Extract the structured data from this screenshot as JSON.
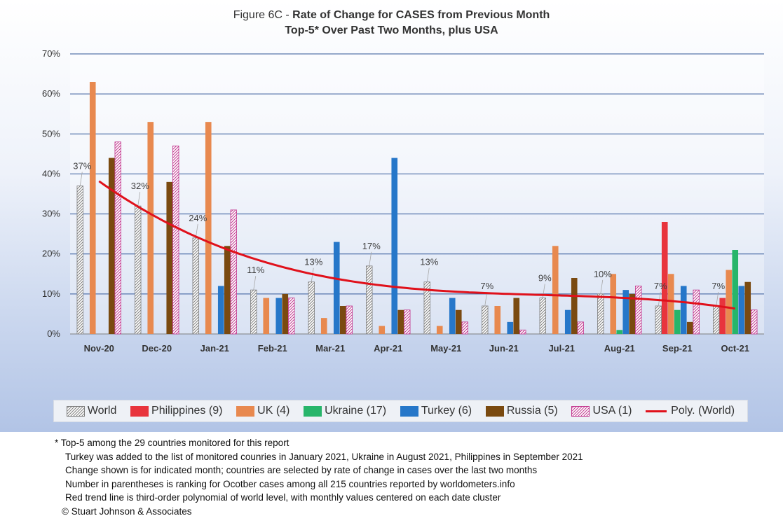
{
  "title": {
    "prefix": "Figure 6C - ",
    "main": "Rate of Change for CASES from Previous Month",
    "subtitle": "Top-5* Over Past Two Months, plus USA"
  },
  "notes": {
    "footnote": "* Top-5 among the 29 countries monitored for this report",
    "lines": [
      "Turkey was added to the list of monitored counries in January 2021, Ukraine in August 2021, Philippines in September 2021",
      "Change shown is for indicated month; countries are selected by rate of change in cases over the last two months",
      "Number in parentheses is ranking for Ocotber cases among all 215 countries reported by worldometers.info",
      "Red trend line is third-order polynomial of world level, with monthly values centered on each date cluster"
    ],
    "copyright": "© Stuart Johnson & Associates"
  },
  "legend": {
    "world": "World",
    "philippines": "Philippines (9)",
    "uk": "UK (4)",
    "ukraine": "Ukraine (17)",
    "turkey": "Turkey (6)",
    "russia": "Russia (5)",
    "usa": "USA (1)",
    "trend": "Poly. (World)"
  },
  "colors": {
    "philippines": "#e8343d",
    "uk": "#e8894f",
    "ukraine": "#27b56a",
    "turkey": "#2677c9",
    "russia": "#7a4a10",
    "usa_hatch": "#c2388f",
    "world_hatch": "#7f7f7f",
    "trend": "#e0111b",
    "grid": "#2f5597"
  },
  "chart_data": {
    "type": "bar",
    "categories": [
      "Nov-20",
      "Dec-20",
      "Jan-21",
      "Feb-21",
      "Mar-21",
      "Apr-21",
      "May-21",
      "Jun-21",
      "Jul-21",
      "Aug-21",
      "Sep-21",
      "Oct-21"
    ],
    "series": [
      {
        "key": "world",
        "name": "World",
        "values": [
          37,
          32,
          24,
          11,
          13,
          17,
          13,
          7,
          9,
          10,
          7,
          7
        ]
      },
      {
        "key": "philippines",
        "name": "Philippines (9)",
        "values": [
          null,
          null,
          null,
          null,
          null,
          null,
          null,
          null,
          null,
          null,
          28,
          9
        ]
      },
      {
        "key": "uk",
        "name": "UK (4)",
        "values": [
          63,
          53,
          53,
          9,
          4,
          2,
          2,
          7,
          22,
          15,
          15,
          16
        ]
      },
      {
        "key": "ukraine",
        "name": "Ukraine (17)",
        "values": [
          null,
          null,
          null,
          null,
          null,
          null,
          null,
          null,
          null,
          1,
          6,
          21
        ]
      },
      {
        "key": "turkey",
        "name": "Turkey (6)",
        "values": [
          null,
          null,
          12,
          9,
          23,
          44,
          9,
          3,
          6,
          11,
          12,
          12
        ]
      },
      {
        "key": "russia",
        "name": "Russia (5)",
        "values": [
          44,
          38,
          22,
          10,
          7,
          6,
          6,
          9,
          14,
          10,
          3,
          13
        ]
      },
      {
        "key": "usa",
        "name": "USA (1)",
        "values": [
          48,
          47,
          31,
          9,
          7,
          6,
          3,
          1,
          3,
          12,
          11,
          6
        ]
      }
    ],
    "data_labels": [
      "37%",
      "32%",
      "24%",
      "11%",
      "13%",
      "17%",
      "13%",
      "7%",
      "9%",
      "10%",
      "7%",
      "7%"
    ],
    "trend": {
      "name": "Poly. (World)",
      "type": "polynomial",
      "order": 3
    },
    "y_ticks": [
      "0%",
      "10%",
      "20%",
      "30%",
      "40%",
      "50%",
      "60%",
      "70%"
    ],
    "ylim": [
      0,
      70
    ],
    "grid": true,
    "legend_position": "bottom"
  }
}
